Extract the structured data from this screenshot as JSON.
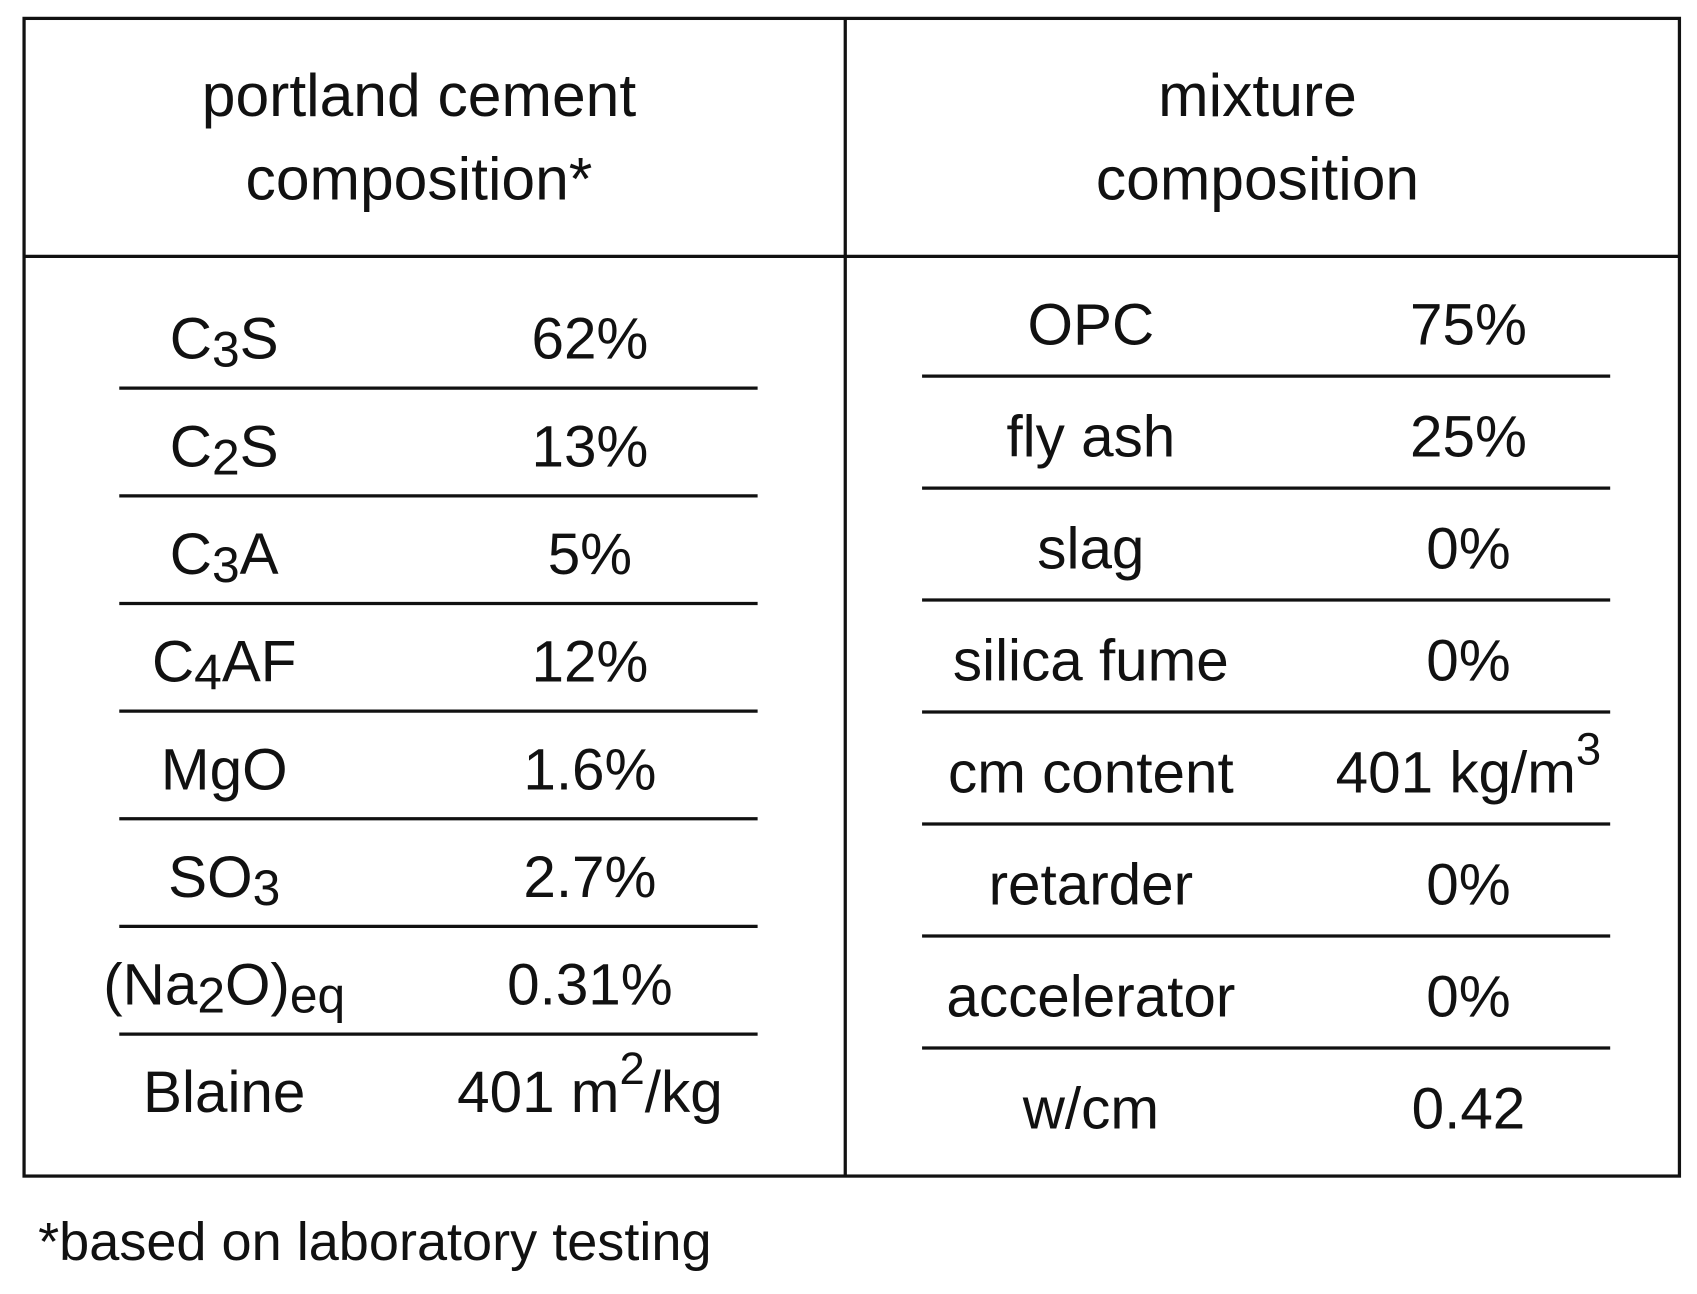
{
  "left": {
    "header": [
      "portland cement",
      "composition*"
    ],
    "rows": [
      {
        "label": [
          {
            "text": "C"
          },
          {
            "sub": "3"
          },
          {
            "text": "S"
          }
        ],
        "value": [
          {
            "text": "62%"
          }
        ]
      },
      {
        "label": [
          {
            "text": "C"
          },
          {
            "sub": "2"
          },
          {
            "text": "S"
          }
        ],
        "value": [
          {
            "text": "13%"
          }
        ]
      },
      {
        "label": [
          {
            "text": "C"
          },
          {
            "sub": "3"
          },
          {
            "text": "A"
          }
        ],
        "value": [
          {
            "text": "5%"
          }
        ]
      },
      {
        "label": [
          {
            "text": "C"
          },
          {
            "sub": "4"
          },
          {
            "text": "AF"
          }
        ],
        "value": [
          {
            "text": "12%"
          }
        ]
      },
      {
        "label": [
          {
            "text": "MgO"
          }
        ],
        "value": [
          {
            "text": "1.6%"
          }
        ]
      },
      {
        "label": [
          {
            "text": "SO"
          },
          {
            "sub": "3"
          }
        ],
        "value": [
          {
            "text": "2.7%"
          }
        ]
      },
      {
        "label": [
          {
            "text": "(Na"
          },
          {
            "sub": "2"
          },
          {
            "text": "O)"
          },
          {
            "sub": "eq"
          }
        ],
        "value": [
          {
            "text": "0.31%"
          }
        ]
      },
      {
        "label": [
          {
            "text": "Blaine"
          }
        ],
        "value": [
          {
            "text": "401 m"
          },
          {
            "sup": "2"
          },
          {
            "text": "/kg"
          }
        ]
      }
    ]
  },
  "right": {
    "header": [
      "mixture",
      "composition"
    ],
    "rows": [
      {
        "label": [
          {
            "text": "OPC"
          }
        ],
        "value": [
          {
            "text": "75%"
          }
        ]
      },
      {
        "label": [
          {
            "text": "fly ash"
          }
        ],
        "value": [
          {
            "text": "25%"
          }
        ]
      },
      {
        "label": [
          {
            "text": "slag"
          }
        ],
        "value": [
          {
            "text": "0%"
          }
        ]
      },
      {
        "label": [
          {
            "text": "silica fume"
          }
        ],
        "value": [
          {
            "text": "0%"
          }
        ]
      },
      {
        "label": [
          {
            "text": "cm content"
          }
        ],
        "value": [
          {
            "text": "401 kg/m"
          },
          {
            "sup": "3"
          }
        ]
      },
      {
        "label": [
          {
            "text": "retarder"
          }
        ],
        "value": [
          {
            "text": "0%"
          }
        ]
      },
      {
        "label": [
          {
            "text": "accelerator"
          }
        ],
        "value": [
          {
            "text": "0%"
          }
        ]
      },
      {
        "label": [
          {
            "text": "w/cm"
          }
        ],
        "value": [
          {
            "text": "0.42"
          }
        ]
      }
    ]
  },
  "footnote": "*based on laboratory testing"
}
